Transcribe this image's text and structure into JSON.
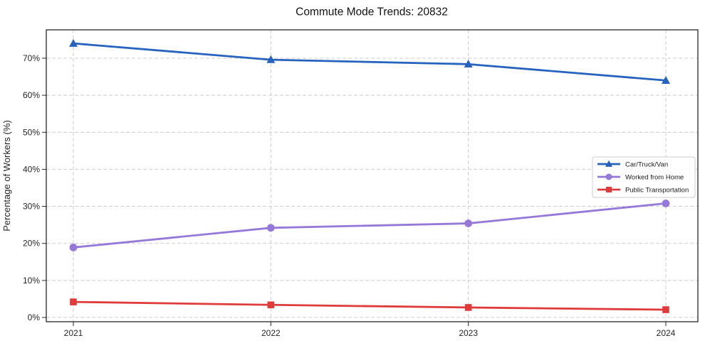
{
  "title": "Commute Mode Trends: 20832",
  "colors": {
    "background": "#ffffff",
    "grid": "#cccccc",
    "spine": "#262626",
    "text": "#262626",
    "car_truck_van": "#2563be",
    "worked_from_home": "#9678d8",
    "public_transportation": "#e03b3b"
  },
  "chart_data": {
    "type": "line",
    "title": "Commute Mode Trends: 20832",
    "xlabel": "",
    "ylabel": "Percentage of Workers (%)",
    "categories": [
      "2021",
      "2022",
      "2023",
      "2024"
    ],
    "y_ticks": [
      "0%",
      "10%",
      "20%",
      "30%",
      "40%",
      "50%",
      "60%",
      "70%"
    ],
    "y_tick_values": [
      0,
      10,
      20,
      30,
      40,
      50,
      60,
      70
    ],
    "ylim": [
      -1.2,
      77.7
    ],
    "grid": "dashed horizontal and vertical gridlines",
    "legend_position": "center right",
    "series": [
      {
        "name": "Car/Truck/Van",
        "marker": "triangle",
        "color": "#2563be",
        "values": [
          74.0,
          69.6,
          68.4,
          64.0
        ]
      },
      {
        "name": "Worked from Home",
        "marker": "circle",
        "color": "#9678d8",
        "values": [
          18.9,
          24.2,
          25.4,
          30.8
        ]
      },
      {
        "name": "Public Transportation",
        "marker": "square",
        "color": "#e03b3b",
        "values": [
          4.2,
          3.4,
          2.7,
          2.1
        ]
      }
    ]
  }
}
